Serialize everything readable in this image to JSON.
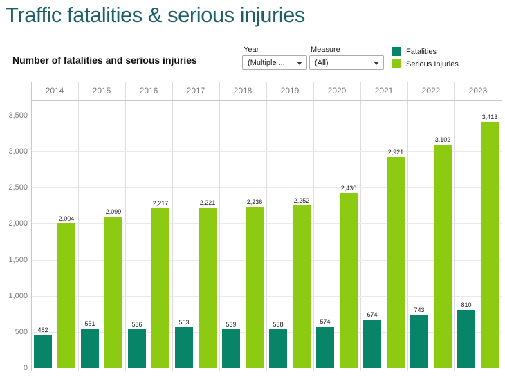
{
  "page": {
    "title": "Traffic fatalities & serious injuries"
  },
  "header": {
    "subtitle": "Number of fatalities and serious injuries",
    "filters": [
      {
        "label": "Year",
        "value": "(Multiple ...",
        "icon": "caret-down-icon"
      },
      {
        "label": "Measure",
        "value": "(All)",
        "icon": "caret-down-icon"
      }
    ],
    "legend": [
      {
        "label": "Fatalities",
        "color": "#088568"
      },
      {
        "label": "Serious Injuries",
        "color": "#8ccb12"
      }
    ]
  },
  "chart_data": {
    "type": "bar",
    "title": "Number of fatalities and serious injuries",
    "categories": [
      "2014",
      "2015",
      "2016",
      "2017",
      "2018",
      "2019",
      "2020",
      "2021",
      "2022",
      "2023"
    ],
    "series": [
      {
        "name": "Fatalities",
        "color": "#088568",
        "values": [
          462,
          551,
          536,
          563,
          539,
          538,
          574,
          674,
          743,
          810
        ]
      },
      {
        "name": "Serious Injuries",
        "color": "#8ccb12",
        "values": [
          2004,
          2099,
          2217,
          2221,
          2236,
          2252,
          2430,
          2921,
          3102,
          3413
        ]
      }
    ],
    "xlabel": "",
    "ylabel": "",
    "ylim": [
      0,
      3500
    ],
    "yticks": [
      0,
      500,
      1000,
      1500,
      2000,
      2500,
      3000,
      3500
    ],
    "ytick_labels": [
      "0",
      "500",
      "1,000",
      "1,500",
      "2,000",
      "2,500",
      "3,000",
      "3,500"
    ],
    "grid": true,
    "legend_position": "top-right",
    "bar_labels": true
  }
}
